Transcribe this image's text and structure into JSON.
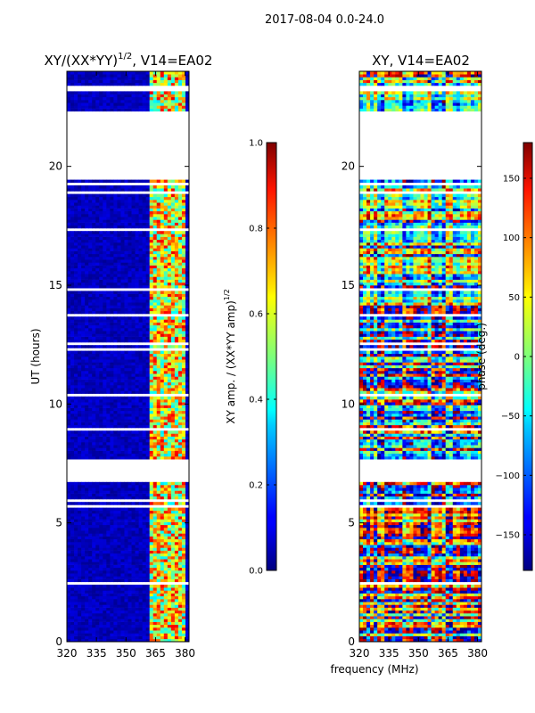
{
  "figure_title": "2017-08-04 0.0-24.0",
  "xlabel": "frequency (MHz)",
  "chart_data": [
    {
      "type": "heatmap",
      "title_main": "XY/(XX*YY)",
      "title_sup": "1/2",
      "title_rest": ", V14=EA02",
      "ylabel": "UT (hours)",
      "xlim": [
        320,
        382
      ],
      "ylim": [
        0,
        24
      ],
      "xticks": [
        320,
        335,
        350,
        365,
        380
      ],
      "yticks": [
        0,
        5,
        10,
        15,
        20
      ],
      "colorbar": {
        "label_main": "XY amp. / (XX*YY amp)",
        "label_sup": "1/2",
        "vmin": 0.0,
        "vmax": 1.0,
        "ticks": [
          0.0,
          0.2,
          0.4,
          0.6,
          0.8,
          1.0
        ],
        "tick_labels": [
          "0.0",
          "0.2",
          "0.4",
          "0.6",
          "0.8",
          "1.0"
        ],
        "colormap": "jet"
      },
      "gaps_ut_hours": [
        [
          19.6,
          22.3
        ],
        [
          6.7,
          7.6
        ]
      ],
      "band_mhz": [
        [
          362,
          376
        ],
        [
          377,
          381
        ]
      ]
    },
    {
      "type": "heatmap",
      "title": "XY, V14=EA02",
      "xlim": [
        320,
        382
      ],
      "ylim": [
        0,
        24
      ],
      "xticks": [
        320,
        335,
        350,
        365,
        380
      ],
      "yticks": [
        0,
        5,
        10,
        15,
        20
      ],
      "colorbar": {
        "label": "phase (deg.)",
        "vmin": -180,
        "vmax": 180,
        "ticks": [
          -150,
          -100,
          -50,
          0,
          50,
          100,
          150
        ],
        "tick_labels": [
          "−150",
          "−100",
          "−50",
          "0",
          "50",
          "100",
          "150"
        ],
        "colormap": "jet"
      },
      "gaps_ut_hours": [
        [
          19.6,
          22.3
        ],
        [
          6.7,
          7.6
        ]
      ]
    }
  ]
}
